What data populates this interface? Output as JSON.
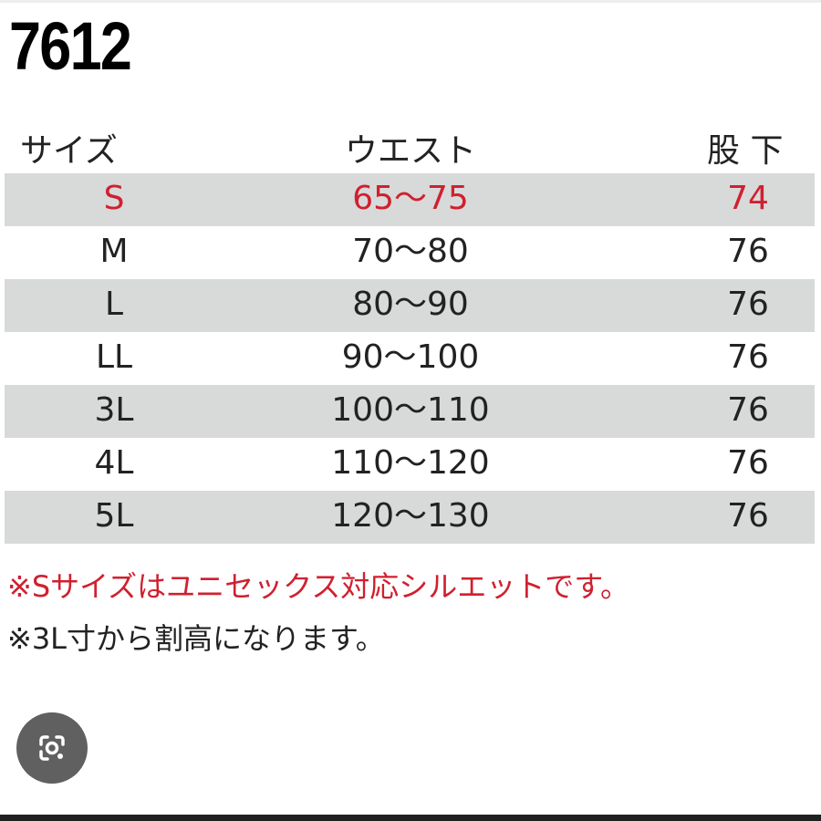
{
  "title": "7612",
  "table": {
    "headers": [
      "サイズ",
      "ウエスト",
      "股 下"
    ],
    "rows": [
      {
        "size": "S",
        "waist": "65〜75",
        "inseam": "74",
        "highlight": true
      },
      {
        "size": "M",
        "waist": "70〜80",
        "inseam": "76"
      },
      {
        "size": "L",
        "waist": "80〜90",
        "inseam": "76"
      },
      {
        "size": "LL",
        "waist": "90〜100",
        "inseam": "76"
      },
      {
        "size": "3L",
        "waist": "100〜110",
        "inseam": "76"
      },
      {
        "size": "4L",
        "waist": "110〜120",
        "inseam": "76"
      },
      {
        "size": "5L",
        "waist": "120〜130",
        "inseam": "76"
      }
    ]
  },
  "notes": [
    "※Sサイズはユニセックス対応シルエットです。",
    "※3L寸から割高になります。"
  ],
  "colors": {
    "accent_red": "#d0202f",
    "row_shade": "#d8d9d9"
  },
  "lens_button": {
    "icon": "google-lens-icon"
  }
}
